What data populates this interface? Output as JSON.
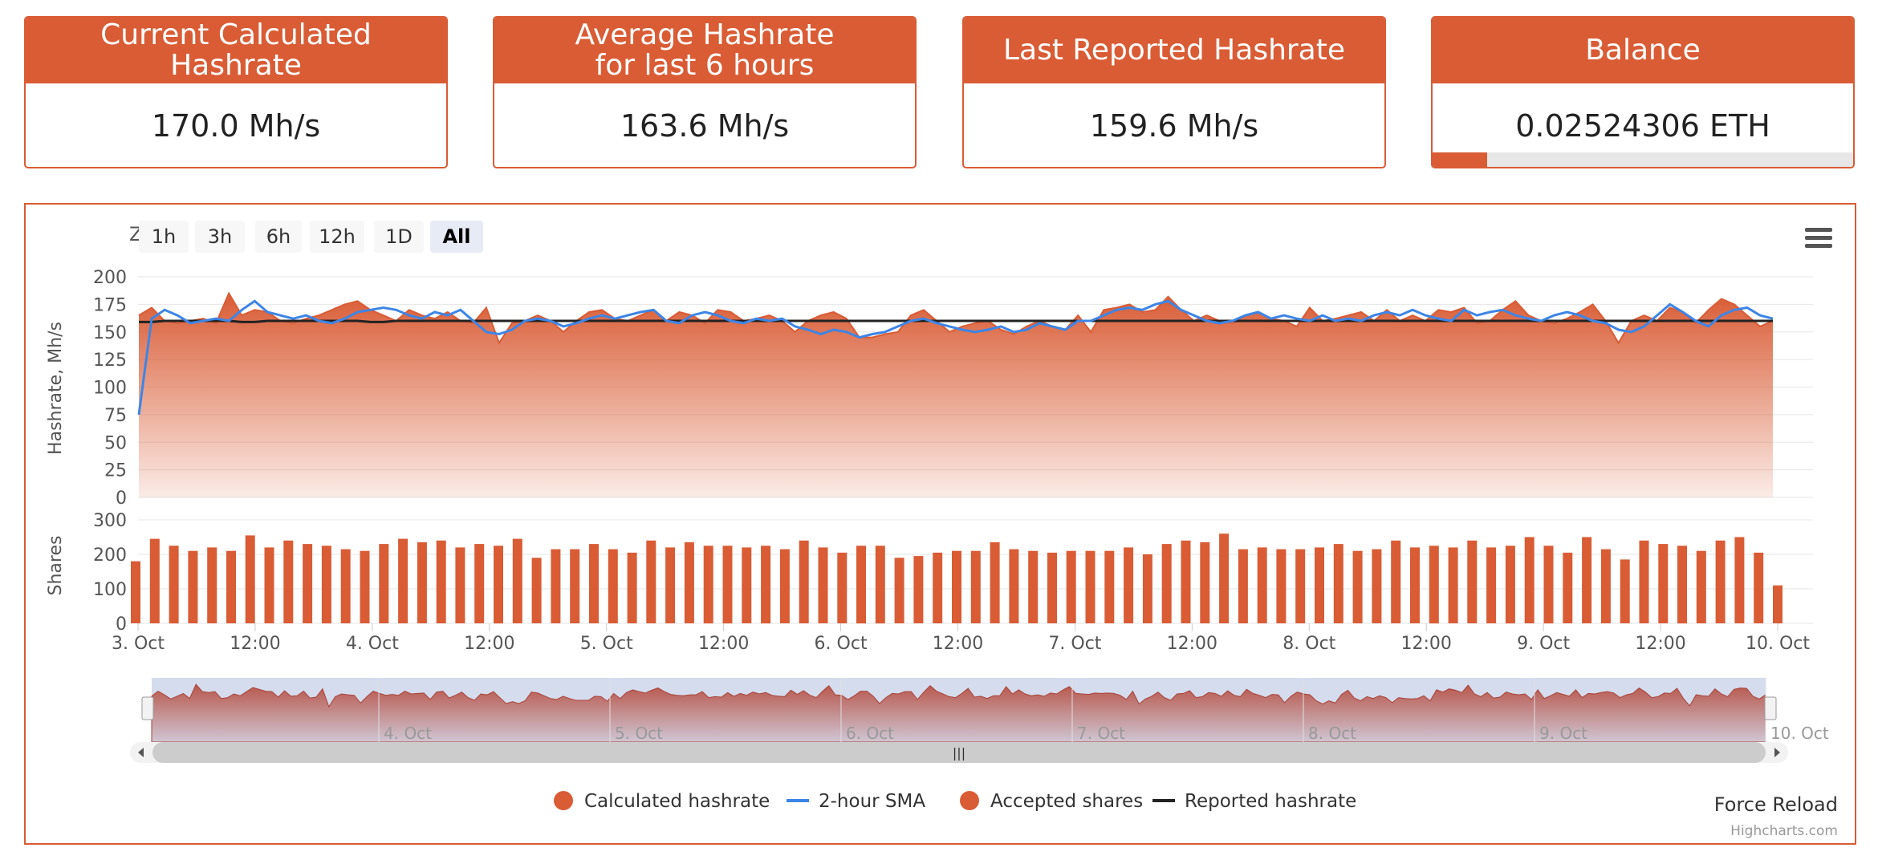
{
  "cards": [
    {
      "title": "Current Calculated\nHashrate",
      "value": "170.0 Mh/s"
    },
    {
      "title": "Average Hashrate\nfor last 6 hours",
      "value": "163.6 Mh/s"
    },
    {
      "title": "Last Reported Hashrate",
      "value": "159.6 Mh/s"
    },
    {
      "title": "Balance",
      "value": "0.02524306 ETH",
      "progress": 0.13
    }
  ],
  "zoom": {
    "label": "Zoom",
    "buttons": [
      "1h",
      "3h",
      "6h",
      "12h",
      "1D",
      "All"
    ],
    "selected": "All"
  },
  "colors": {
    "accent": "#d95c35",
    "sma": "#3d85e6",
    "reported": "#222222",
    "navigator": "#c6d0e8"
  },
  "chart_data": {
    "type": "area",
    "x_ticks": [
      "3. Oct",
      "12:00",
      "4. Oct",
      "12:00",
      "5. Oct",
      "12:00",
      "6. Oct",
      "12:00",
      "7. Oct",
      "12:00",
      "8. Oct",
      "12:00",
      "9. Oct",
      "12:00",
      "10. Oct"
    ],
    "navigator_ticks": [
      "4. Oct",
      "5. Oct",
      "6. Oct",
      "7. Oct",
      "8. Oct",
      "9. Oct",
      "10. Oct"
    ],
    "hashrate_panel": {
      "ylabel": "Hashrate, Mh/s",
      "ylim": [
        0,
        200
      ],
      "yticks": [
        0,
        25,
        50,
        75,
        100,
        125,
        150,
        175,
        200
      ],
      "series": [
        {
          "name": "Calculated hashrate",
          "values": [
            165,
            172,
            160,
            158,
            160,
            162,
            158,
            185,
            165,
            170,
            168,
            160,
            158,
            162,
            165,
            170,
            175,
            178,
            170,
            165,
            160,
            170,
            165,
            162,
            168,
            160,
            158,
            172,
            140,
            158,
            160,
            165,
            160,
            150,
            160,
            168,
            170,
            162,
            160,
            165,
            170,
            160,
            168,
            165,
            158,
            170,
            168,
            160,
            162,
            165,
            160,
            150,
            160,
            165,
            168,
            162,
            145,
            145,
            148,
            150,
            165,
            170,
            160,
            150,
            155,
            158,
            160,
            152,
            148,
            155,
            160,
            155,
            152,
            165,
            150,
            170,
            172,
            175,
            168,
            170,
            182,
            170,
            160,
            165,
            160,
            158,
            165,
            168,
            162,
            160,
            155,
            172,
            160,
            162,
            165,
            168,
            160,
            170,
            160,
            165,
            160,
            170,
            168,
            172,
            158,
            160,
            170,
            178,
            165,
            160,
            158,
            162,
            168,
            175,
            160,
            140,
            160,
            165,
            160,
            172,
            168,
            158,
            170,
            180,
            175,
            165,
            155,
            160
          ]
        },
        {
          "name": "2-hour SMA",
          "values": [
            75,
            162,
            170,
            165,
            158,
            160,
            162,
            160,
            170,
            178,
            168,
            165,
            162,
            165,
            160,
            158,
            162,
            168,
            170,
            172,
            170,
            165,
            162,
            168,
            165,
            170,
            160,
            150,
            148,
            152,
            160,
            162,
            160,
            155,
            158,
            162,
            165,
            162,
            165,
            168,
            170,
            160,
            158,
            165,
            168,
            165,
            160,
            158,
            162,
            160,
            162,
            155,
            152,
            148,
            152,
            150,
            145,
            148,
            150,
            155,
            160,
            162,
            158,
            155,
            152,
            150,
            152,
            155,
            150,
            152,
            158,
            155,
            152,
            160,
            160,
            165,
            170,
            172,
            170,
            175,
            178,
            170,
            165,
            160,
            158,
            160,
            165,
            168,
            162,
            165,
            162,
            160,
            165,
            160,
            162,
            160,
            165,
            168,
            165,
            170,
            165,
            162,
            160,
            170,
            165,
            168,
            170,
            165,
            162,
            160,
            165,
            168,
            165,
            160,
            158,
            152,
            150,
            155,
            165,
            175,
            168,
            160,
            155,
            165,
            170,
            172,
            165,
            162
          ]
        },
        {
          "name": "Reported hashrate",
          "values": [
            159,
            159,
            160,
            160,
            160,
            160,
            160,
            160,
            159,
            159,
            160,
            160,
            160,
            160,
            160,
            160,
            160,
            160,
            159,
            159,
            160,
            160,
            160,
            160,
            160,
            160,
            160,
            160,
            160,
            160,
            160,
            160,
            160,
            160,
            160,
            160,
            160,
            160,
            160,
            160,
            160,
            160,
            160,
            160,
            160,
            160,
            160,
            160,
            160,
            160,
            160,
            160,
            160,
            160,
            160,
            160,
            160,
            160,
            160,
            160,
            160,
            160,
            160,
            160,
            160,
            160,
            160,
            160,
            160,
            160,
            160,
            160,
            160,
            160,
            160,
            160,
            160,
            160,
            160,
            160,
            160,
            160,
            160,
            160,
            160,
            160,
            160,
            160,
            160,
            160,
            160,
            160,
            160,
            160,
            160,
            160,
            160,
            160,
            160,
            160,
            160,
            160,
            160,
            160,
            160,
            160,
            160,
            160,
            160,
            160,
            160,
            160,
            160,
            160,
            160,
            160,
            160,
            160,
            160,
            160,
            160,
            160,
            160,
            160,
            160,
            160,
            160,
            160
          ]
        }
      ]
    },
    "shares_panel": {
      "ylabel": "Shares",
      "ylim": [
        0,
        300
      ],
      "yticks": [
        0,
        100,
        200,
        300
      ],
      "series": [
        {
          "name": "Accepted shares",
          "values": [
            180,
            245,
            225,
            210,
            220,
            210,
            255,
            220,
            240,
            230,
            225,
            215,
            210,
            230,
            245,
            235,
            240,
            220,
            230,
            225,
            245,
            190,
            215,
            215,
            230,
            215,
            205,
            240,
            220,
            235,
            225,
            225,
            220,
            225,
            215,
            240,
            220,
            205,
            225,
            225,
            190,
            195,
            205,
            210,
            210,
            235,
            215,
            210,
            205,
            210,
            210,
            210,
            220,
            200,
            230,
            240,
            235,
            260,
            215,
            220,
            215,
            215,
            220,
            230,
            210,
            215,
            240,
            220,
            225,
            220,
            240,
            220,
            225,
            250,
            225,
            205,
            250,
            215,
            185,
            240,
            230,
            225,
            210,
            240,
            250,
            205,
            110
          ]
        }
      ]
    },
    "legend": [
      "Calculated hashrate",
      "2-hour SMA",
      "Accepted shares",
      "Reported hashrate"
    ]
  },
  "footer": {
    "reload": "Force Reload",
    "credit": "Highcharts.com"
  }
}
